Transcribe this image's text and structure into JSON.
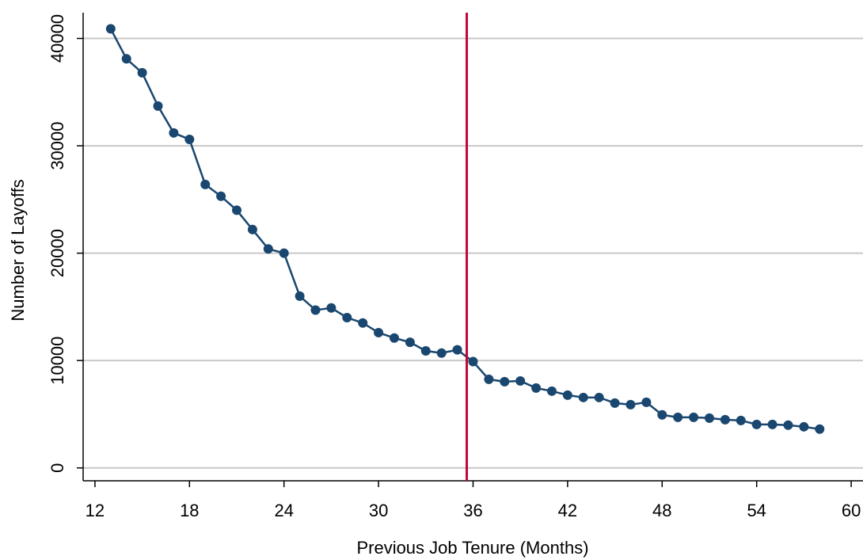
{
  "chart_data": {
    "type": "line",
    "x_label": "Previous Job Tenure (Months)",
    "y_label": "Number of Layoffs",
    "x": [
      13,
      14,
      15,
      16,
      17,
      18,
      19,
      20,
      21,
      22,
      23,
      24,
      25,
      26,
      27,
      28,
      29,
      30,
      31,
      32,
      33,
      34,
      35,
      36,
      37,
      38,
      39,
      40,
      41,
      42,
      43,
      44,
      45,
      46,
      47,
      48,
      49,
      50,
      51,
      52,
      53,
      54,
      55,
      56,
      57,
      58
    ],
    "series": [
      {
        "color": "#1a476f",
        "values": [
          40900,
          38100,
          36800,
          33700,
          31200,
          30600,
          26400,
          25300,
          24000,
          22200,
          20400,
          20000,
          16000,
          14700,
          14900,
          14000,
          13500,
          12600,
          12100,
          11700,
          10900,
          10700,
          11000,
          9900,
          8250,
          8030,
          8100,
          7440,
          7150,
          6780,
          6560,
          6560,
          6040,
          5890,
          6110,
          4940,
          4710,
          4710,
          4640,
          4490,
          4420,
          4050,
          4050,
          3980,
          3830,
          3610
        ]
      }
    ],
    "vline": 35.6,
    "vline_color": "#c10534",
    "xlim": [
      11.25,
      60.75
    ],
    "xticks": [
      12,
      18,
      24,
      30,
      36,
      42,
      48,
      54,
      60
    ],
    "ylim": [
      -1200,
      42400
    ],
    "yticks": [
      0,
      10000,
      20000,
      30000,
      40000
    ],
    "grid": true
  }
}
